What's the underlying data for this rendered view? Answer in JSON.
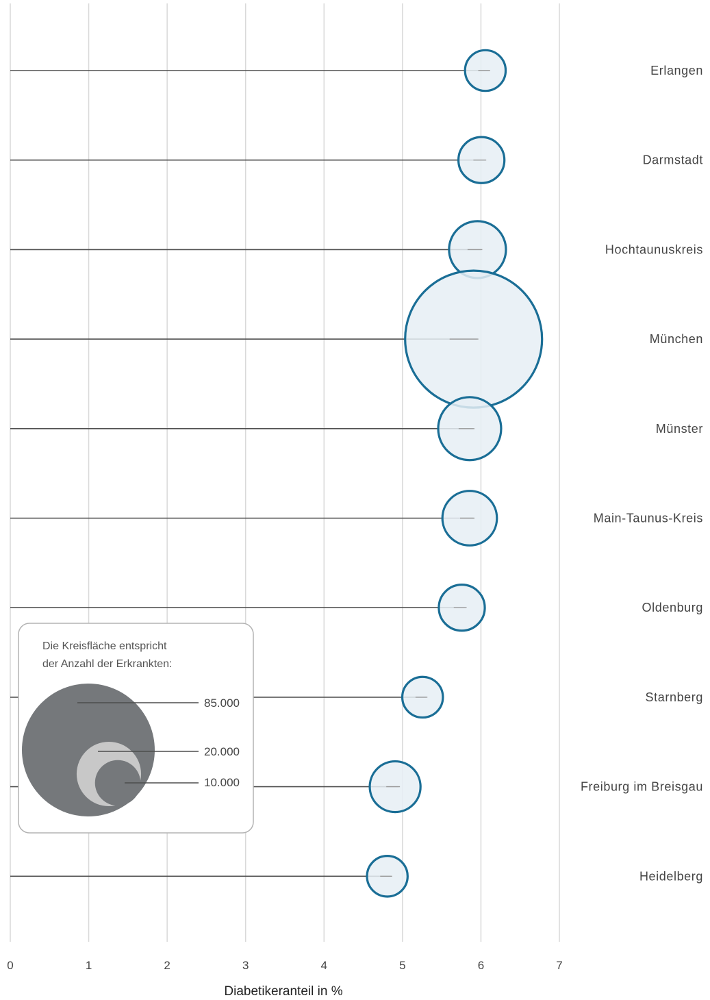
{
  "chart_data": {
    "type": "scatter",
    "subtype": "bubble-lollipop",
    "xlabel": "Diabetikeranteil in %",
    "xlim": [
      0,
      7
    ],
    "xticks": [
      "0",
      "1",
      "2",
      "3",
      "4",
      "5",
      "6",
      "7"
    ],
    "grid": "vertical",
    "colors": {
      "bubble_fill": "#e6eef5",
      "bubble_stroke": "#1a6e96",
      "stem": "#505050",
      "grid": "#d9d9d9",
      "legend_big": "#75787b",
      "legend_mid": "#c8c8c8"
    },
    "points": [
      {
        "label": "Erlangen",
        "x": 6.1,
        "count": 12500
      },
      {
        "label": "Darmstadt",
        "x": 6.05,
        "count": 16000
      },
      {
        "label": "Hochtaunuskreis",
        "x": 6.0,
        "count": 24500
      },
      {
        "label": "München",
        "x": 5.95,
        "count": 142000
      },
      {
        "label": "Münster",
        "x": 5.9,
        "count": 30000
      },
      {
        "label": "Main-Taunus-Kreis",
        "x": 5.9,
        "count": 22500
      },
      {
        "label": "Oldenburg",
        "x": 5.8,
        "count": 16000
      },
      {
        "label": "Starnberg",
        "x": 5.3,
        "count": 12500
      },
      {
        "label": "Freiburg im Breisgau",
        "x": 4.95,
        "count": 19500
      },
      {
        "label": "Heidelberg",
        "x": 4.85,
        "count": 12500
      }
    ],
    "legend": {
      "title_line1": "Die Kreisfläche entspricht",
      "title_line2": "der Anzahl der Erkrankten:",
      "entries": [
        {
          "label": "85.000",
          "count": 85000
        },
        {
          "label": "20.000",
          "count": 20000
        },
        {
          "label": "10.000",
          "count": 10000
        }
      ]
    }
  }
}
